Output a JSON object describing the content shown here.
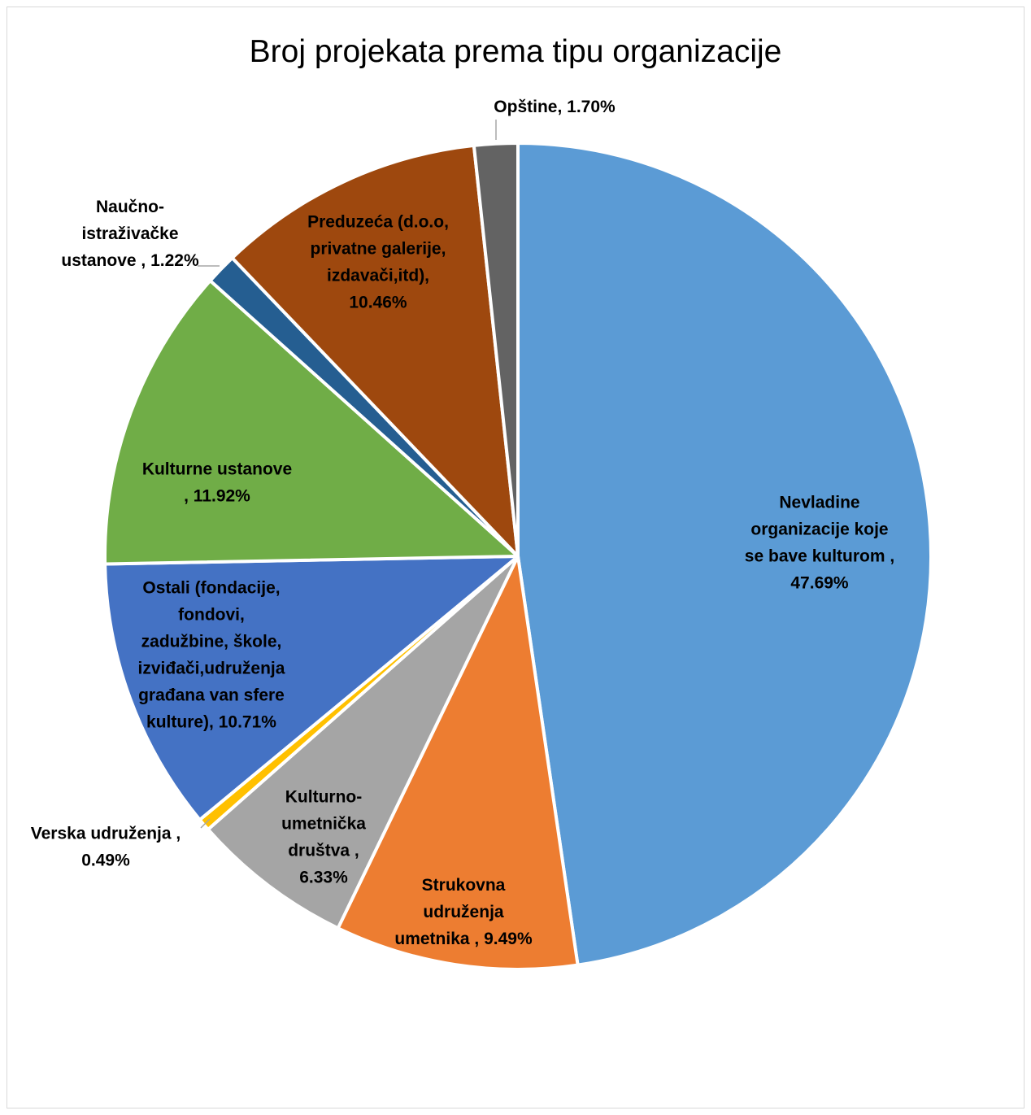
{
  "chart_data": {
    "type": "pie",
    "title": "Broj projekata prema tipu organizacije",
    "start_angle_deg": 0,
    "direction": "clockwise",
    "slices": [
      {
        "name": "Nevladine organizacije koje se bave kulturom",
        "value": 47.69,
        "color": "#5b9bd5",
        "label_lines": [
          "Nevladine",
          "organizacije koje",
          "se bave kulturom ,",
          "47.69%"
        ]
      },
      {
        "name": "Strukovna udruženja umetnika",
        "value": 9.49,
        "color": "#ed7d31",
        "label_lines": [
          "Strukovna",
          "udruženja",
          "umetnika , 9.49%"
        ]
      },
      {
        "name": "Kulturno-umetnička društva",
        "value": 6.33,
        "color": "#a5a5a5",
        "label_lines": [
          "Kulturno-",
          "umetnička",
          "društva ,",
          "6.33%"
        ]
      },
      {
        "name": "Verska udruženja",
        "value": 0.49,
        "color": "#ffc000",
        "label_lines": [
          "Verska udruženja ,",
          "0.49%"
        ]
      },
      {
        "name": "Ostali (fondacije, fondovi, zadužbine, škole, izviđači,udruženja građana van sfere kulture)",
        "value": 10.71,
        "color": "#4472c4",
        "label_lines": [
          "Ostali (fondacije,",
          "fondovi,",
          "zadužbine, škole,",
          "izviđači,udruženja",
          "građana van sfere",
          "kulture), 10.71%"
        ]
      },
      {
        "name": "Kulturne ustanove",
        "value": 11.92,
        "color": "#70ad47",
        "label_lines": [
          "Kulturne ustanove",
          ", 11.92%"
        ]
      },
      {
        "name": "Naučno-istraživačke ustanove",
        "value": 1.22,
        "color": "#255e91",
        "label_lines": [
          "Naučno-",
          "istraživačke",
          "ustanove , 1.22%"
        ]
      },
      {
        "name": "Preduzeća (d.o.o, privatne galerije, izdavači,itd)",
        "value": 10.46,
        "color": "#9e480e",
        "label_lines": [
          "Preduzeća (d.o.o,",
          "privatne galerije,",
          "izdavači,itd),",
          "10.46%"
        ]
      },
      {
        "name": "Opštine",
        "value": 1.7,
        "color": "#636363",
        "label_lines": [
          "Opštine, 1.70%"
        ]
      }
    ]
  }
}
